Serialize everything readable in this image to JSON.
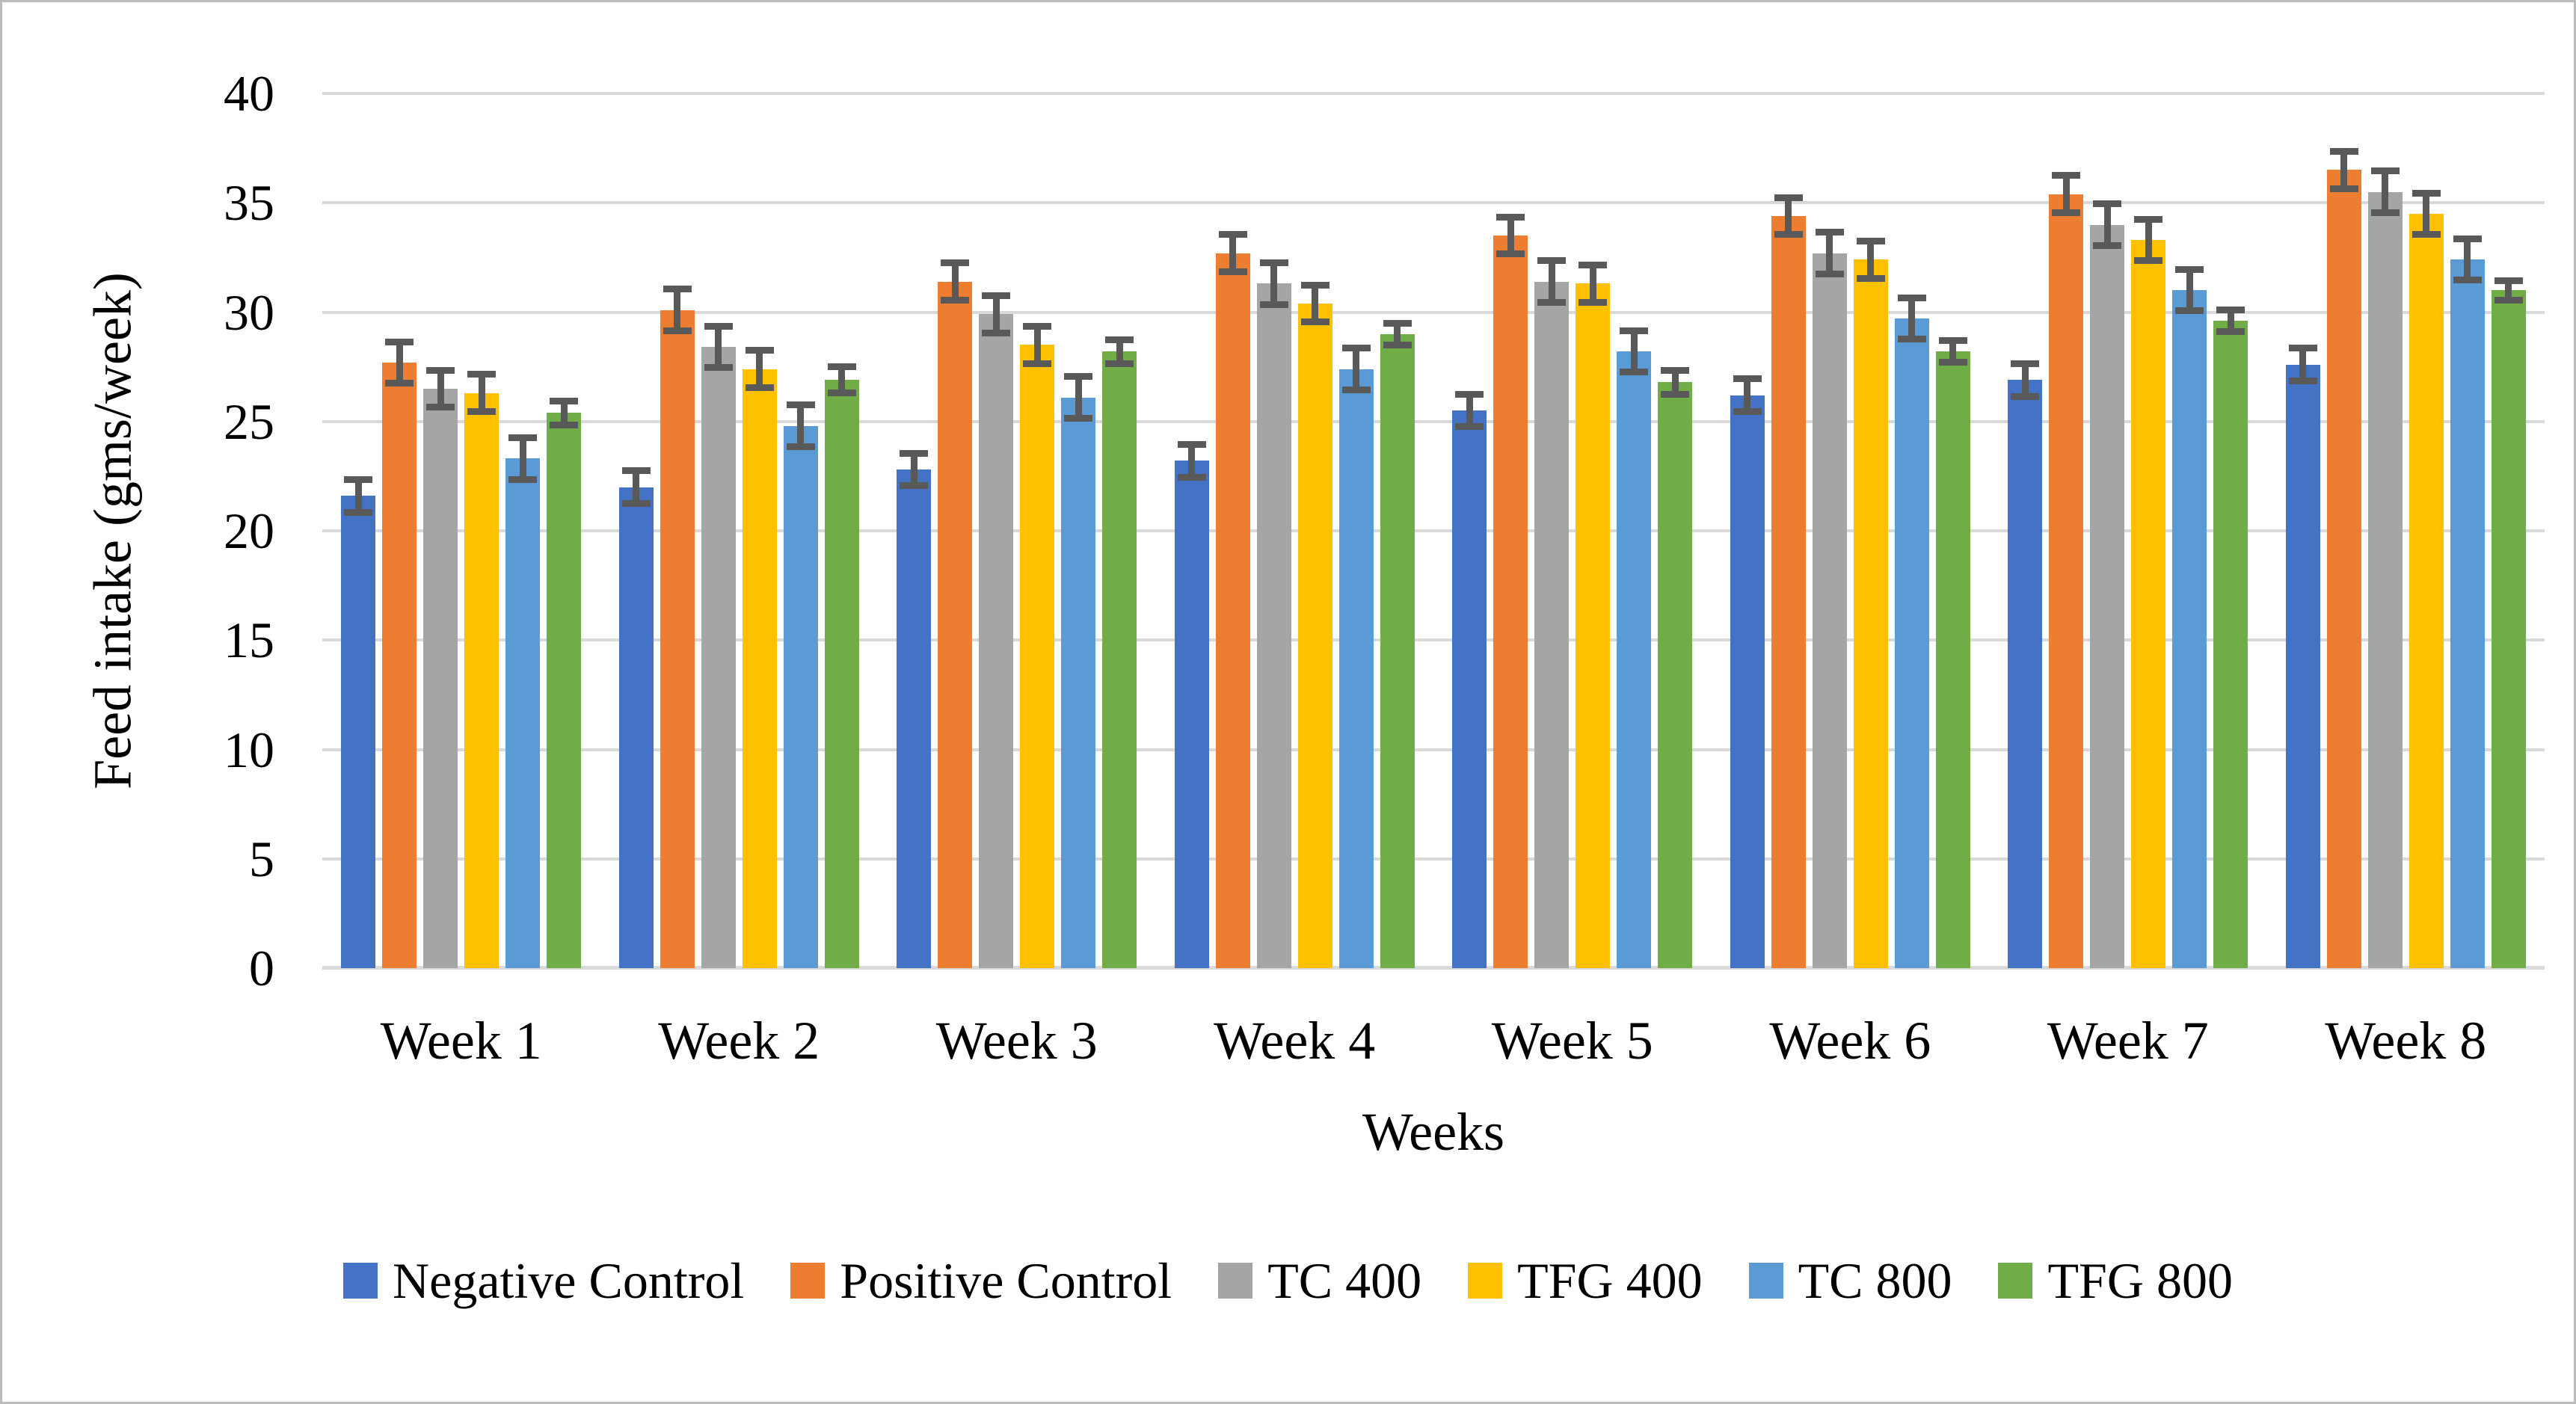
{
  "figure": {
    "y_axis_title": "Feed intake (gms/week)",
    "x_axis_title": "Weeks"
  },
  "chart_data": {
    "type": "bar",
    "title": "",
    "xlabel": "Weeks",
    "ylabel": "Feed intake (gms/week)",
    "ylim": [
      0,
      40
    ],
    "yticks": [
      0,
      5,
      10,
      15,
      20,
      25,
      30,
      35,
      40
    ],
    "grid": true,
    "legend_position": "bottom",
    "error_bars": true,
    "categories": [
      "Week 1",
      "Week 2",
      "Week 3",
      "Week 4",
      "Week 5",
      "Week 6",
      "Week 7",
      "Week 8"
    ],
    "series": [
      {
        "name": "Negative Control",
        "color": "#4472C4",
        "values": [
          21.6,
          22.0,
          22.8,
          23.2,
          25.5,
          26.2,
          26.9,
          27.6
        ],
        "errors": [
          0.9,
          0.9,
          0.9,
          0.9,
          0.9,
          0.9,
          0.9,
          0.9
        ]
      },
      {
        "name": "Positive Control",
        "color": "#ED7D31",
        "values": [
          27.7,
          30.1,
          31.4,
          32.7,
          33.5,
          34.4,
          35.4,
          36.5
        ],
        "errors": [
          1.1,
          1.1,
          1.0,
          1.0,
          1.0,
          1.0,
          1.0,
          1.0
        ]
      },
      {
        "name": "TC 400",
        "color": "#A5A5A5",
        "values": [
          26.5,
          28.4,
          29.9,
          31.3,
          31.4,
          32.7,
          34.0,
          35.5
        ],
        "errors": [
          1.0,
          1.1,
          1.0,
          1.1,
          1.1,
          1.1,
          1.1,
          1.1
        ]
      },
      {
        "name": "TFG 400",
        "color": "#FFC000",
        "values": [
          26.3,
          27.4,
          28.5,
          30.4,
          31.3,
          32.4,
          33.3,
          34.5
        ],
        "errors": [
          1.0,
          1.0,
          1.0,
          1.0,
          1.0,
          1.0,
          1.1,
          1.1
        ]
      },
      {
        "name": "TC 800",
        "color": "#5B9BD5",
        "values": [
          23.3,
          24.8,
          26.1,
          27.4,
          28.2,
          29.7,
          31.0,
          32.4
        ],
        "errors": [
          1.1,
          1.1,
          1.1,
          1.1,
          1.1,
          1.1,
          1.1,
          1.1
        ]
      },
      {
        "name": "TFG 800",
        "color": "#70AD47",
        "values": [
          25.4,
          26.9,
          28.2,
          29.0,
          26.8,
          28.2,
          29.6,
          31.0
        ],
        "errors": [
          0.7,
          0.75,
          0.7,
          0.65,
          0.7,
          0.65,
          0.65,
          0.6
        ]
      }
    ],
    "colors": {
      "gridline": "#D9D9D9",
      "error_bar": "#595959",
      "text": "#000000",
      "figure_border": "#BCBCBC",
      "background": "#FFFFFF"
    }
  }
}
